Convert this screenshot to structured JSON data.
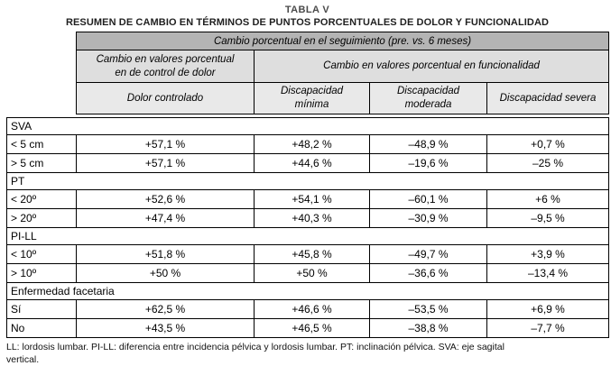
{
  "title": "TABLA V",
  "subtitle": "RESUMEN DE CAMBIO EN TÉRMINOS DE PUNTOS PORCENTUALES DE DOLOR Y FUNCIONALIDAD",
  "table": {
    "top_header": "Cambio porcental en el seguimiento (pre. vs. 6 meses)",
    "top_header_text": "Cambio porcentual en el seguimiento (pre. vs. 6 meses)",
    "group_headers": {
      "pain": "Cambio en valores porcentual\nen de control de dolor",
      "functionality": "Cambio en valores porcentual en  funcionalidad"
    },
    "column_headers": [
      "Dolor controlado",
      "Discapacidad\nmínima",
      "Discapacidad\nmoderada",
      "Discapacidad severa"
    ],
    "sections": [
      {
        "name": "SVA",
        "rows": [
          {
            "label": "< 5 cm",
            "values": [
              "+57,1 %",
              "+48,2 %",
              "–48,9 %",
              "+0,7 %"
            ]
          },
          {
            "label": "> 5 cm",
            "values": [
              "+57,1 %",
              "+44,6 %",
              "–19,6 %",
              "–25 %"
            ]
          }
        ]
      },
      {
        "name": "PT",
        "rows": [
          {
            "label": "< 20º",
            "values": [
              "+52,6 %",
              "+54,1 %",
              "–60,1 %",
              "+6 %"
            ]
          },
          {
            "label": "> 20º",
            "values": [
              "+47,4 %",
              "+40,3 %",
              "–30,9 %",
              "–9,5 %"
            ]
          }
        ]
      },
      {
        "name": "PI-LL",
        "rows": [
          {
            "label": "< 10º",
            "values": [
              "+51,8 %",
              "+45,8 %",
              "–49,7 %",
              "+3,9 %"
            ]
          },
          {
            "label": "> 10º",
            "values": [
              "+50 %",
              "+50 %",
              "–36,6 %",
              "–13,4 %"
            ]
          }
        ]
      },
      {
        "name": "Enfermedad facetaria",
        "rows": [
          {
            "label": "Sí",
            "values": [
              "+62,5 %",
              "+46,6 %",
              "–53,5 %",
              "+6,9 %"
            ]
          },
          {
            "label": "No",
            "values": [
              "+43,5 %",
              "+46,5 %",
              "–38,8 %",
              "–7,7 %"
            ]
          }
        ]
      }
    ]
  },
  "footnote": "LL: lordosis lumbar. PI-LL: diferencia entre incidencia pélvica y lordosis lumbar. PT: inclinación pélvica. SVA: eje sagital\nvertical.",
  "colors": {
    "header_top_bg": "#b4b4b4",
    "header_group_bg": "#dedede",
    "header_col_bg": "#e9e9e9",
    "border": "#000000"
  }
}
